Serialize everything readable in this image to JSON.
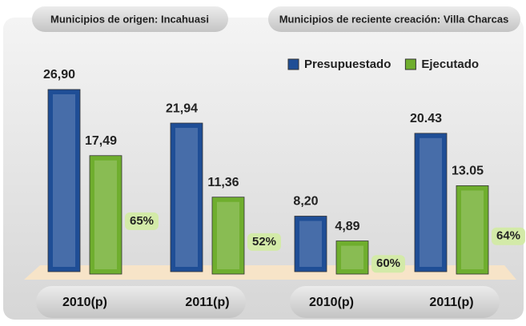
{
  "chart_data": [
    {
      "type": "bar",
      "title": "Municipios de origen: Incahuasi",
      "categories": [
        "2010(p)",
        "2011(p)"
      ],
      "series": [
        {
          "name": "Presupuestado",
          "color": "#1f4e96",
          "values": [
            26.9,
            21.94
          ],
          "value_labels": [
            "26,90",
            "21,94"
          ]
        },
        {
          "name": "Ejecutado",
          "color": "#6fae2e",
          "values": [
            17.49,
            11.36
          ],
          "value_labels": [
            "17,49",
            "11,36"
          ]
        }
      ],
      "percentages": {
        "values": [
          65,
          52
        ],
        "value_labels": [
          "65%",
          "52%"
        ]
      }
    },
    {
      "type": "bar",
      "title": "Municipios de reciente creación: Villa Charcas",
      "categories": [
        "2010(p)",
        "2011(p)"
      ],
      "series": [
        {
          "name": "Presupuestado",
          "color": "#1f4e96",
          "values": [
            8.2,
            20.43
          ],
          "value_labels": [
            "8,20",
            "20.43"
          ]
        },
        {
          "name": "Ejecutado",
          "color": "#6fae2e",
          "values": [
            4.89,
            13.05
          ],
          "value_labels": [
            "4,89",
            "13.05"
          ]
        }
      ],
      "percentages": {
        "values": [
          60,
          64
        ],
        "value_labels": [
          "60%",
          "64%"
        ]
      }
    }
  ]
}
